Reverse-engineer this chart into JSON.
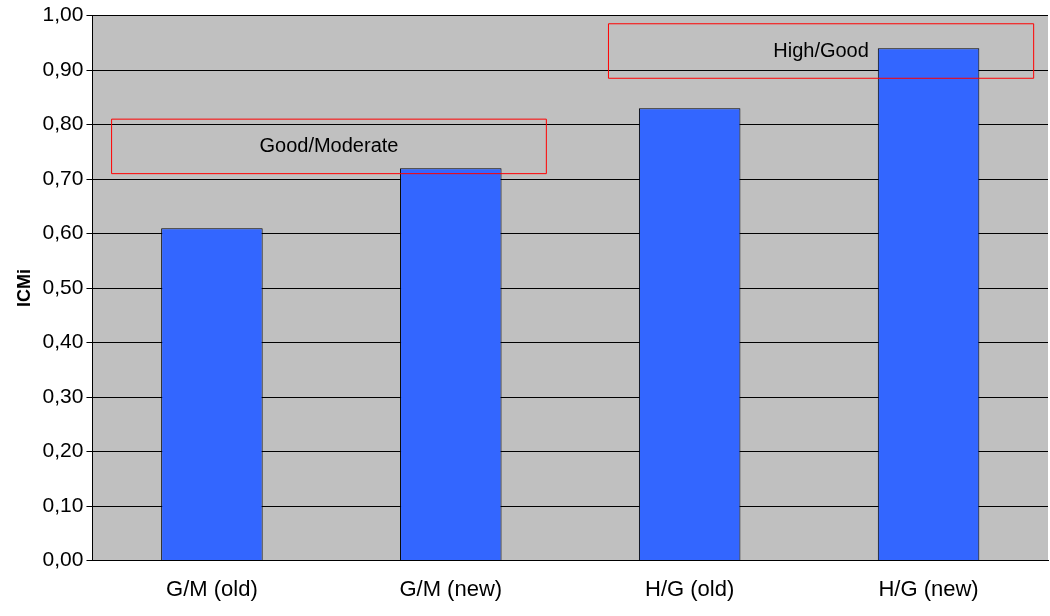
{
  "chart_data": {
    "type": "bar",
    "ylabel": "ICMi",
    "categories": [
      "G/M (old)",
      "G/M (new)",
      "H/G (old)",
      "H/G (new)"
    ],
    "values": [
      0.61,
      0.72,
      0.83,
      0.94
    ],
    "color": "#3366ff",
    "ylim": [
      0,
      1
    ],
    "yticks": [
      {
        "value": 0,
        "label": "0,00"
      },
      {
        "value": 0.1,
        "label": "0,10"
      },
      {
        "value": 0.2,
        "label": "0,20"
      },
      {
        "value": 0.3,
        "label": "0,30"
      },
      {
        "value": 0.4,
        "label": "0,40"
      },
      {
        "value": 0.5,
        "label": "0,50"
      },
      {
        "value": 0.6,
        "label": "0,60"
      },
      {
        "value": 0.7,
        "label": "0,70"
      },
      {
        "value": 0.8,
        "label": "0,80"
      },
      {
        "value": 0.9,
        "label": "0,90"
      },
      {
        "value": 1,
        "label": "1,00"
      }
    ],
    "grid": "y",
    "legend": false,
    "annotations": [
      "Good/Moderate",
      "High/Good"
    ]
  }
}
